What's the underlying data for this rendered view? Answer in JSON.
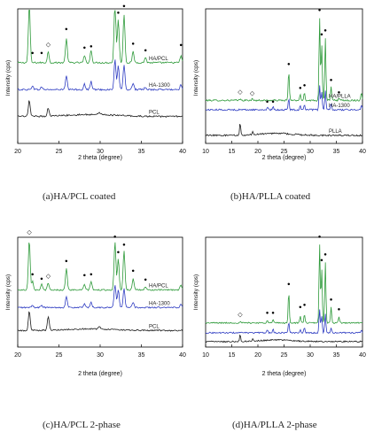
{
  "figure": {
    "colors": {
      "green": "#2e9a3a",
      "blue": "#2e3cc2",
      "black": "#1a1a1a",
      "axis": "#000000"
    },
    "markers": {
      "ha": "●",
      "pcl": "◇"
    }
  },
  "chart_data": [
    {
      "id": "a",
      "type": "line",
      "caption": "(a)HA/PCL coated",
      "xlabel": "2 theta (degree)",
      "ylabel": "Intensity (cps)",
      "xlim": [
        20,
        40
      ],
      "xticks": [
        20,
        25,
        30,
        35,
        40
      ],
      "series": [
        {
          "name": "HA/PCL",
          "color": "green",
          "offset": 0.6,
          "peaks": [
            [
              21.4,
              0.44
            ],
            [
              23.7,
              0.08
            ],
            [
              25.9,
              0.18
            ],
            [
              28.1,
              0.05
            ],
            [
              28.9,
              0.09
            ],
            [
              31.8,
              0.46
            ],
            [
              32.2,
              0.32
            ],
            [
              32.9,
              0.36
            ],
            [
              34.0,
              0.08
            ],
            [
              35.5,
              0.04
            ],
            [
              39.8,
              0.05
            ]
          ]
        },
        {
          "name": "HA-1300",
          "color": "blue",
          "offset": 0.4,
          "peaks": [
            [
              21.8,
              0.03
            ],
            [
              22.9,
              0.02
            ],
            [
              25.9,
              0.1
            ],
            [
              28.1,
              0.04
            ],
            [
              28.9,
              0.06
            ],
            [
              31.8,
              0.22
            ],
            [
              32.2,
              0.18
            ],
            [
              32.9,
              0.18
            ],
            [
              34.0,
              0.05
            ],
            [
              35.5,
              0.02
            ],
            [
              39.8,
              0.04
            ]
          ]
        },
        {
          "name": "PCL",
          "color": "black",
          "offset": 0.2,
          "peaks": [
            [
              21.4,
              0.12
            ],
            [
              23.7,
              0.06
            ],
            [
              29.9,
              0.02
            ]
          ]
        }
      ],
      "ha_markers": [
        [
          21.8,
          0.66
        ],
        [
          22.9,
          0.66
        ],
        [
          25.9,
          0.84
        ],
        [
          28.1,
          0.7
        ],
        [
          28.9,
          0.71
        ],
        [
          31.8,
          1.09
        ],
        [
          32.2,
          0.96
        ],
        [
          32.9,
          1.01
        ],
        [
          34.0,
          0.73
        ],
        [
          35.5,
          0.68
        ],
        [
          39.8,
          0.72
        ]
      ],
      "pcl_markers": [
        [
          21.4,
          1.08
        ],
        [
          23.7,
          0.72
        ]
      ]
    },
    {
      "id": "b",
      "type": "line",
      "caption": "(b)HA/PLLA coated",
      "xlabel": "2 theta (degree)",
      "ylabel": "Intensity (cps)",
      "xlim": [
        10,
        40
      ],
      "xticks": [
        10,
        15,
        20,
        25,
        30,
        35,
        40
      ],
      "series": [
        {
          "name": "HA/PLLA",
          "color": "green",
          "offset": 0.32,
          "peaks": [
            [
              16.6,
              0.01
            ],
            [
              18.9,
              0.01
            ],
            [
              25.9,
              0.22
            ],
            [
              28.1,
              0.04
            ],
            [
              28.9,
              0.06
            ],
            [
              31.8,
              0.62
            ],
            [
              32.2,
              0.42
            ],
            [
              32.9,
              0.46
            ],
            [
              34.0,
              0.1
            ],
            [
              35.5,
              0.02
            ],
            [
              39.8,
              0.06
            ]
          ]
        },
        {
          "name": "HA-1300",
          "color": "blue",
          "offset": 0.25,
          "peaks": [
            [
              21.8,
              0.02
            ],
            [
              22.9,
              0.02
            ],
            [
              25.9,
              0.08
            ],
            [
              28.1,
              0.03
            ],
            [
              28.9,
              0.04
            ],
            [
              31.8,
              0.18
            ],
            [
              32.2,
              0.14
            ],
            [
              32.9,
              0.14
            ],
            [
              34.0,
              0.04
            ],
            [
              39.8,
              0.03
            ]
          ]
        },
        {
          "name": "PLLA",
          "color": "black",
          "offset": 0.06,
          "peaks": [
            [
              16.6,
              0.09
            ],
            [
              19.0,
              0.02
            ]
          ]
        }
      ],
      "ha_markers": [
        [
          21.8,
          0.3
        ],
        [
          22.9,
          0.3
        ],
        [
          25.9,
          0.58
        ],
        [
          28.1,
          0.4
        ],
        [
          28.9,
          0.42
        ],
        [
          31.8,
          0.98
        ],
        [
          32.2,
          0.8
        ],
        [
          32.9,
          0.83
        ],
        [
          34.0,
          0.46
        ],
        [
          35.5,
          0.37
        ]
      ],
      "pcl_markers": [
        [
          16.6,
          0.37
        ],
        [
          18.9,
          0.36
        ]
      ]
    },
    {
      "id": "c",
      "type": "line",
      "caption": "(c)HA/PCL 2-phase",
      "xlabel": "2 theta (degree)",
      "ylabel": "Intensity (cps)",
      "xlim": [
        20,
        40
      ],
      "xticks": [
        20,
        25,
        30,
        35,
        40
      ],
      "series": [
        {
          "name": "HA/PCL",
          "color": "green",
          "offset": 0.52,
          "peaks": [
            [
              21.4,
              0.46
            ],
            [
              21.8,
              0.08
            ],
            [
              22.9,
              0.05
            ],
            [
              23.7,
              0.06
            ],
            [
              25.9,
              0.2
            ],
            [
              28.1,
              0.05
            ],
            [
              28.9,
              0.08
            ],
            [
              31.8,
              0.44
            ],
            [
              32.2,
              0.28
            ],
            [
              32.9,
              0.36
            ],
            [
              34.0,
              0.1
            ],
            [
              35.5,
              0.03
            ],
            [
              39.8,
              0.05
            ]
          ]
        },
        {
          "name": "HA-1300",
          "color": "blue",
          "offset": 0.36,
          "peaks": [
            [
              21.8,
              0.02
            ],
            [
              22.9,
              0.02
            ],
            [
              25.9,
              0.1
            ],
            [
              28.1,
              0.03
            ],
            [
              28.9,
              0.05
            ],
            [
              31.8,
              0.21
            ],
            [
              32.2,
              0.16
            ],
            [
              32.9,
              0.17
            ],
            [
              34.0,
              0.05
            ],
            [
              39.8,
              0.03
            ]
          ]
        },
        {
          "name": "PCL",
          "color": "black",
          "offset": 0.15,
          "peaks": [
            [
              21.4,
              0.18
            ],
            [
              23.7,
              0.13
            ],
            [
              29.9,
              0.02
            ]
          ]
        }
      ],
      "ha_markers": [
        [
          21.8,
          0.65
        ],
        [
          22.9,
          0.61
        ],
        [
          25.9,
          0.77
        ],
        [
          28.1,
          0.64
        ],
        [
          28.9,
          0.65
        ],
        [
          31.8,
          0.99
        ],
        [
          32.2,
          0.85
        ],
        [
          32.9,
          0.92
        ],
        [
          34.0,
          0.68
        ],
        [
          35.5,
          0.6
        ]
      ],
      "pcl_markers": [
        [
          21.4,
          1.03
        ],
        [
          23.7,
          0.63
        ]
      ]
    },
    {
      "id": "d",
      "type": "line",
      "caption": "(d)HA/PLLA 2-phase",
      "xlabel": "2 theta (degree)",
      "ylabel": "Intensity (cps)",
      "xlim": [
        10,
        40
      ],
      "xticks": [
        10,
        15,
        20,
        25,
        30,
        35,
        40
      ],
      "series": [
        {
          "name": "",
          "color": "green",
          "offset": 0.22,
          "peaks": [
            [
              16.6,
              0.01
            ],
            [
              21.8,
              0.03
            ],
            [
              22.9,
              0.03
            ],
            [
              25.9,
              0.28
            ],
            [
              28.1,
              0.06
            ],
            [
              28.9,
              0.08
            ],
            [
              31.8,
              0.72
            ],
            [
              32.2,
              0.5
            ],
            [
              32.9,
              0.55
            ],
            [
              34.0,
              0.14
            ],
            [
              35.5,
              0.05
            ]
          ]
        },
        {
          "name": "",
          "color": "blue",
          "offset": 0.13,
          "peaks": [
            [
              21.8,
              0.03
            ],
            [
              22.9,
              0.03
            ],
            [
              25.9,
              0.1
            ],
            [
              28.1,
              0.03
            ],
            [
              28.9,
              0.05
            ],
            [
              31.8,
              0.22
            ],
            [
              32.2,
              0.16
            ],
            [
              32.9,
              0.17
            ],
            [
              34.0,
              0.05
            ],
            [
              39.8,
              0.03
            ]
          ]
        },
        {
          "name": "",
          "color": "black",
          "offset": 0.05,
          "peaks": [
            [
              16.6,
              0.06
            ],
            [
              19.0,
              0.02
            ]
          ]
        }
      ],
      "ha_markers": [
        [
          21.8,
          0.3
        ],
        [
          22.9,
          0.3
        ],
        [
          25.9,
          0.56
        ],
        [
          28.1,
          0.35
        ],
        [
          28.9,
          0.37
        ],
        [
          31.8,
          0.99
        ],
        [
          32.2,
          0.78
        ],
        [
          32.9,
          0.83
        ],
        [
          34.0,
          0.42
        ],
        [
          35.5,
          0.33
        ]
      ],
      "pcl_markers": [
        [
          16.6,
          0.28
        ]
      ]
    }
  ]
}
